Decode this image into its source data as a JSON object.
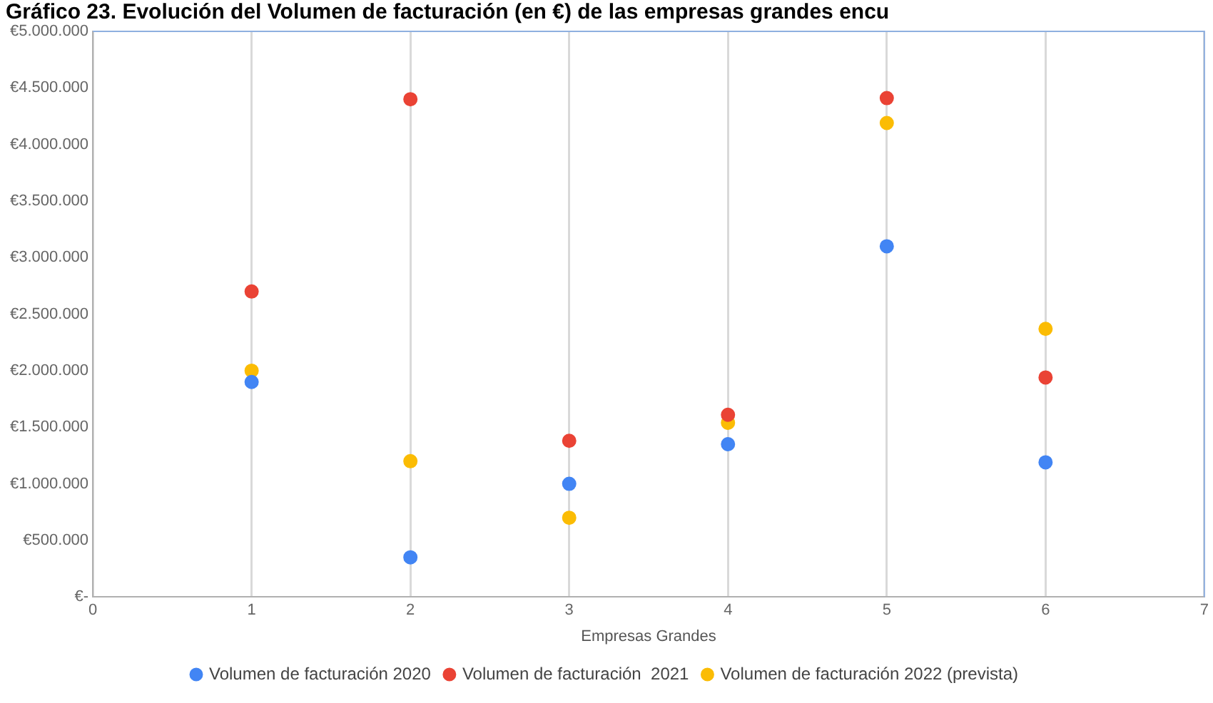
{
  "chart_data": {
    "type": "scatter",
    "title": "Gráfico 23. Evolución del Volumen de facturación (en €) de las empresas grandes encu",
    "xlabel": "Empresas Grandes",
    "x": [
      1,
      2,
      3,
      4,
      5,
      6
    ],
    "series": [
      {
        "name": "Volumen de facturación 2020",
        "color": "#4285f4",
        "values": [
          1900000,
          350000,
          1000000,
          1350000,
          3100000,
          1190000
        ]
      },
      {
        "name": "Volumen de facturación  2021",
        "color": "#ea4335",
        "values": [
          2700000,
          4400000,
          1380000,
          1610000,
          4410000,
          1940000
        ]
      },
      {
        "name": "Volumen de facturación 2022 (prevista)",
        "color": "#fbbc04",
        "values": [
          2000000,
          1200000,
          700000,
          1540000,
          4190000,
          2370000
        ]
      }
    ],
    "xlim": [
      0,
      7
    ],
    "xticks": [
      0,
      1,
      2,
      3,
      4,
      5,
      6,
      7
    ],
    "ylim": [
      0,
      5000000
    ],
    "yticks": [
      {
        "value": 0,
        "label": "€-"
      },
      {
        "value": 500000,
        "label": "€500.000"
      },
      {
        "value": 1000000,
        "label": "€1.000.000"
      },
      {
        "value": 1500000,
        "label": "€1.500.000"
      },
      {
        "value": 2000000,
        "label": "€2.000.000"
      },
      {
        "value": 2500000,
        "label": "€2.500.000"
      },
      {
        "value": 3000000,
        "label": "€3.000.000"
      },
      {
        "value": 3500000,
        "label": "€3.500.000"
      },
      {
        "value": 4000000,
        "label": "€4.000.000"
      },
      {
        "value": 4500000,
        "label": "€4.500.000"
      },
      {
        "value": 5000000,
        "label": "€5.000.000"
      }
    ],
    "grid": "x",
    "legend": "bottom",
    "marker": "circle"
  }
}
